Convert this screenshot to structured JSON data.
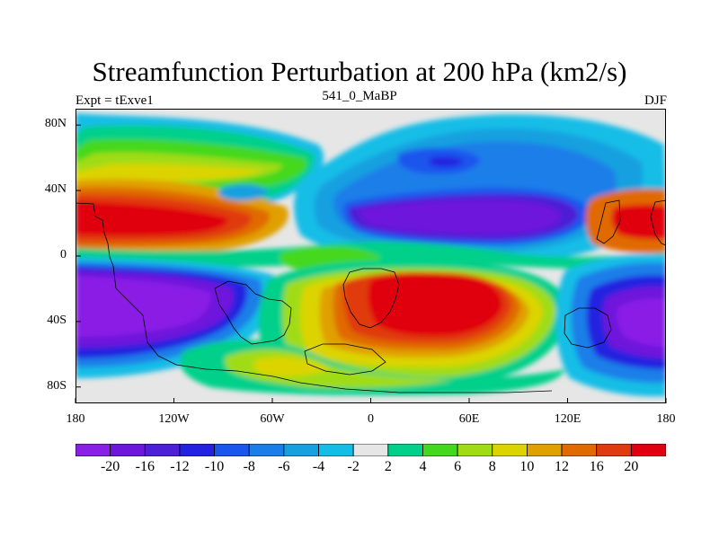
{
  "figure": {
    "title": "Streamfunction Perturbation at 200 hPa (km2/s)",
    "left_string": "Expt = tExve1",
    "center_string": "541_0_MaBP",
    "right_string": "DJF"
  },
  "map": {
    "projection": "cylindrical equidistant",
    "lon_range": [
      -180,
      180
    ],
    "lat_range": [
      -90,
      90
    ],
    "background": "#e6e6e6",
    "coastlines": true,
    "y_ticks": [
      {
        "lat": 80,
        "label": "80N"
      },
      {
        "lat": 40,
        "label": "40N"
      },
      {
        "lat": 0,
        "label": "0"
      },
      {
        "lat": -40,
        "label": "40S"
      },
      {
        "lat": -80,
        "label": "80S"
      }
    ],
    "x_ticks": [
      {
        "lon": -180,
        "label": "180"
      },
      {
        "lon": -120,
        "label": "120W"
      },
      {
        "lon": -60,
        "label": "60W"
      },
      {
        "lon": 0,
        "label": "0"
      },
      {
        "lon": 60,
        "label": "60E"
      },
      {
        "lon": 120,
        "label": "120E"
      },
      {
        "lon": 180,
        "label": "180"
      }
    ]
  },
  "colorbar": {
    "colors": [
      "#8a1fe6",
      "#6e17dc",
      "#4d1fd6",
      "#2222e0",
      "#1a55ee",
      "#1a7ee8",
      "#16a0e0",
      "#14bde6",
      "#e6e6e6",
      "#00d08a",
      "#44d81c",
      "#a0dc14",
      "#dcd400",
      "#e0a000",
      "#e06a00",
      "#e03a10",
      "#e00010"
    ],
    "labels": [
      "-20",
      "-16",
      "-12",
      "-10",
      "-8",
      "-6",
      "-4",
      "-2",
      "2",
      "4",
      "6",
      "8",
      "10",
      "12",
      "16",
      "20"
    ]
  },
  "chart_data": {
    "type": "heatmap",
    "title": "Streamfunction Perturbation at 200 hPa (km2/s)",
    "contour_levels": [
      -20,
      -16,
      -12,
      -10,
      -8,
      -6,
      -4,
      -2,
      2,
      4,
      6,
      8,
      10,
      12,
      16,
      20
    ],
    "features": [
      {
        "lon": -145,
        "lat": 22,
        "value": 20
      },
      {
        "lon": 165,
        "lat": 22,
        "value": 20
      },
      {
        "lon": 25,
        "lat": -30,
        "value": 20
      },
      {
        "lon": -150,
        "lat": 60,
        "value": 6
      },
      {
        "lon": -150,
        "lat": -35,
        "value": -20
      },
      {
        "lon": 165,
        "lat": -40,
        "value": -20
      },
      {
        "lon": 55,
        "lat": 20,
        "value": -20
      },
      {
        "lon": 55,
        "lat": 58,
        "value": -12
      },
      {
        "lon": -65,
        "lat": 40,
        "value": -4
      },
      {
        "lon": -60,
        "lat": -80,
        "value": 4
      }
    ]
  }
}
